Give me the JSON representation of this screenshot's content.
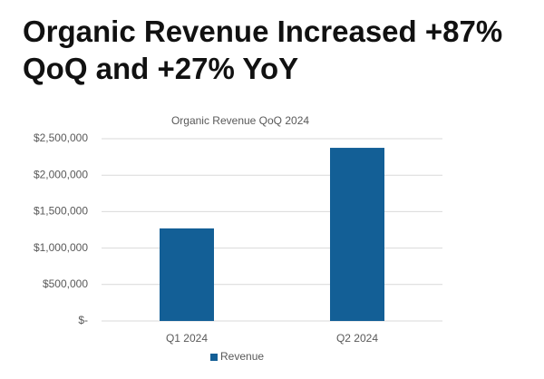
{
  "headline": "Organic Revenue Increased +87% QoQ and +27% YoY",
  "chart_data": {
    "type": "bar",
    "title": "Organic Revenue QoQ 2024",
    "categories": [
      "Q1 2024",
      "Q2 2024"
    ],
    "series": [
      {
        "name": "Revenue",
        "color": "#135f96",
        "values": [
          1270000,
          2375000
        ]
      }
    ],
    "ylim": [
      0,
      2500000
    ],
    "yticks": [
      {
        "value": 0,
        "label": "$-"
      },
      {
        "value": 500000,
        "label": "$500,000"
      },
      {
        "value": 1000000,
        "label": "$1,000,000"
      },
      {
        "value": 1500000,
        "label": "$1,500,000"
      },
      {
        "value": 2000000,
        "label": "$2,000,000"
      },
      {
        "value": 2500000,
        "label": "$2,500,000"
      }
    ],
    "grid": true,
    "legend": "bottom"
  }
}
